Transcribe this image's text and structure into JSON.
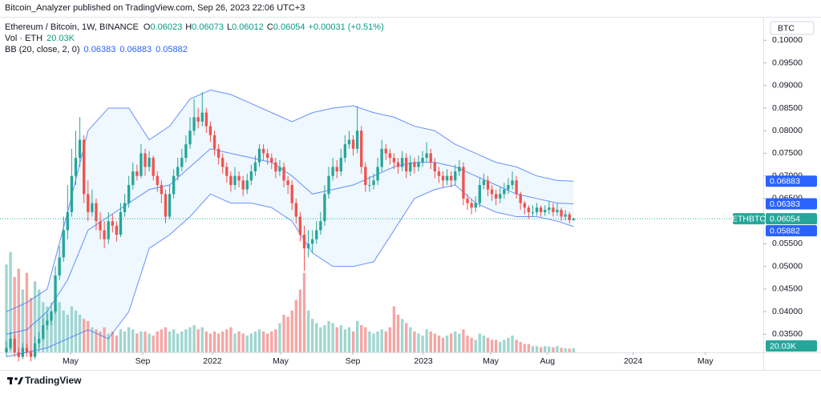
{
  "chart_data": {
    "type": "candlestick",
    "header": {
      "published": "Bitcoin_Analyzer published on TradingView.com, Sep 26, 2023 22:06 UTC+3",
      "symbol": "Ethereum / Bitcoin, 1W, BINANCE",
      "ohlc_keys": [
        "O",
        "H",
        "L",
        "C"
      ],
      "change": "+0.00031 (+0.51%)",
      "volume_name": "Vol · ETH",
      "volume_label": "20.03K",
      "currency": "BTC",
      "ticker": "ETHBTC",
      "brand": "TradingView"
    },
    "up_color": "#26a69a",
    "down_color": "#ef5350",
    "volume_up_color": "#9fd6d0",
    "volume_down_color": "#f5a6a4",
    "xlim": [
      -1.57,
      185.5
    ],
    "ylim": [
      0.031,
      0.105
    ],
    "vlim": [
      0,
      1600
    ],
    "yticks": [
      {
        "value": 0.035,
        "label": "0.03500"
      },
      {
        "value": 0.04,
        "label": "0.04000"
      },
      {
        "value": 0.045,
        "label": "0.04500"
      },
      {
        "value": 0.05,
        "label": "0.05000"
      },
      {
        "value": 0.055,
        "label": "0.05500"
      },
      {
        "value": 0.06,
        "label": "0.06000"
      },
      {
        "value": 0.065,
        "label": "0.06500"
      },
      {
        "value": 0.07,
        "label": "0.07000"
      },
      {
        "value": 0.075,
        "label": "0.07500"
      },
      {
        "value": 0.08,
        "label": "0.08000"
      },
      {
        "value": 0.085,
        "label": "0.08500"
      },
      {
        "value": 0.09,
        "label": "0.09000"
      },
      {
        "value": 0.095,
        "label": "0.09500"
      },
      {
        "value": 0.1,
        "label": "0.10000"
      }
    ],
    "xticks": [
      {
        "value": 15.7,
        "label": "May"
      },
      {
        "value": 33.4,
        "label": "Sep"
      },
      {
        "value": 50.5,
        "label": "2022"
      },
      {
        "value": 67.2,
        "label": "May"
      },
      {
        "value": 84.9,
        "label": "Sep"
      },
      {
        "value": 102.2,
        "label": "2023"
      },
      {
        "value": 118.7,
        "label": "May"
      },
      {
        "value": 132.6,
        "label": "Aug"
      },
      {
        "value": 153.6,
        "label": "2024"
      },
      {
        "value": 171.3,
        "label": "May"
      }
    ],
    "grid": false,
    "ohlc": [
      [
        0.031,
        0.0335,
        0.03,
        0.032
      ],
      [
        0.032,
        0.0355,
        0.0315,
        0.034
      ],
      [
        0.034,
        0.035,
        0.03,
        0.031
      ],
      [
        0.031,
        0.032,
        0.029,
        0.03
      ],
      [
        0.03,
        0.033,
        0.0295,
        0.032
      ],
      [
        0.032,
        0.033,
        0.03,
        0.031
      ],
      [
        0.031,
        0.0315,
        0.029,
        0.03
      ],
      [
        0.03,
        0.0345,
        0.0295,
        0.033
      ],
      [
        0.033,
        0.0355,
        0.032,
        0.034
      ],
      [
        0.034,
        0.0385,
        0.0335,
        0.037
      ],
      [
        0.037,
        0.0395,
        0.036,
        0.038
      ],
      [
        0.038,
        0.042,
        0.037,
        0.04
      ],
      [
        0.04,
        0.05,
        0.0395,
        0.048
      ],
      [
        0.048,
        0.0545,
        0.047,
        0.052
      ],
      [
        0.052,
        0.061,
        0.051,
        0.058
      ],
      [
        0.058,
        0.068,
        0.056,
        0.062
      ],
      [
        0.062,
        0.076,
        0.061,
        0.07
      ],
      [
        0.07,
        0.08,
        0.068,
        0.074
      ],
      [
        0.074,
        0.083,
        0.072,
        0.078
      ],
      [
        0.078,
        0.079,
        0.064,
        0.066
      ],
      [
        0.066,
        0.069,
        0.06,
        0.062
      ],
      [
        0.062,
        0.067,
        0.061,
        0.064
      ],
      [
        0.064,
        0.065,
        0.058,
        0.06
      ],
      [
        0.06,
        0.062,
        0.056,
        0.058
      ],
      [
        0.058,
        0.06,
        0.054,
        0.056
      ],
      [
        0.056,
        0.062,
        0.055,
        0.06
      ],
      [
        0.06,
        0.0615,
        0.0575,
        0.059
      ],
      [
        0.059,
        0.06,
        0.0555,
        0.057
      ],
      [
        0.057,
        0.064,
        0.0565,
        0.062
      ],
      [
        0.062,
        0.066,
        0.061,
        0.064
      ],
      [
        0.064,
        0.07,
        0.063,
        0.068
      ],
      [
        0.068,
        0.073,
        0.067,
        0.071
      ],
      [
        0.071,
        0.0725,
        0.069,
        0.07
      ],
      [
        0.07,
        0.077,
        0.0695,
        0.075
      ],
      [
        0.075,
        0.076,
        0.07,
        0.072
      ],
      [
        0.072,
        0.0755,
        0.071,
        0.074
      ],
      [
        0.074,
        0.0745,
        0.069,
        0.07
      ],
      [
        0.07,
        0.071,
        0.0665,
        0.068
      ],
      [
        0.068,
        0.069,
        0.064,
        0.066
      ],
      [
        0.066,
        0.067,
        0.0595,
        0.061
      ],
      [
        0.061,
        0.068,
        0.0605,
        0.066
      ],
      [
        0.066,
        0.0715,
        0.065,
        0.07
      ],
      [
        0.07,
        0.074,
        0.069,
        0.072
      ],
      [
        0.072,
        0.076,
        0.071,
        0.074
      ],
      [
        0.074,
        0.079,
        0.073,
        0.077
      ],
      [
        0.077,
        0.083,
        0.076,
        0.08
      ],
      [
        0.08,
        0.087,
        0.079,
        0.083
      ],
      [
        0.083,
        0.085,
        0.0805,
        0.082
      ],
      [
        0.082,
        0.0885,
        0.081,
        0.084
      ],
      [
        0.084,
        0.085,
        0.0795,
        0.081
      ],
      [
        0.081,
        0.082,
        0.0775,
        0.079
      ],
      [
        0.079,
        0.08,
        0.0745,
        0.076
      ],
      [
        0.076,
        0.077,
        0.0725,
        0.074
      ],
      [
        0.074,
        0.075,
        0.0705,
        0.072
      ],
      [
        0.072,
        0.073,
        0.0685,
        0.07
      ],
      [
        0.07,
        0.071,
        0.0665,
        0.068
      ],
      [
        0.068,
        0.072,
        0.067,
        0.07
      ],
      [
        0.07,
        0.071,
        0.0675,
        0.069
      ],
      [
        0.069,
        0.07,
        0.0655,
        0.067
      ],
      [
        0.067,
        0.0705,
        0.066,
        0.069
      ],
      [
        0.069,
        0.0725,
        0.068,
        0.071
      ],
      [
        0.071,
        0.0745,
        0.07,
        0.073
      ],
      [
        0.073,
        0.077,
        0.072,
        0.076
      ],
      [
        0.076,
        0.077,
        0.0735,
        0.075
      ],
      [
        0.075,
        0.076,
        0.0725,
        0.074
      ],
      [
        0.074,
        0.075,
        0.0715,
        0.073
      ],
      [
        0.073,
        0.074,
        0.0695,
        0.071
      ],
      [
        0.071,
        0.0735,
        0.07,
        0.072
      ],
      [
        0.072,
        0.073,
        0.0675,
        0.069
      ],
      [
        0.069,
        0.07,
        0.066,
        0.068
      ],
      [
        0.068,
        0.069,
        0.0625,
        0.064
      ],
      [
        0.064,
        0.065,
        0.0595,
        0.061
      ],
      [
        0.061,
        0.062,
        0.0555,
        0.057
      ],
      [
        0.057,
        0.059,
        0.049,
        0.054
      ],
      [
        0.054,
        0.058,
        0.052,
        0.055
      ],
      [
        0.055,
        0.058,
        0.053,
        0.056
      ],
      [
        0.056,
        0.06,
        0.055,
        0.058
      ],
      [
        0.058,
        0.062,
        0.057,
        0.06
      ],
      [
        0.06,
        0.068,
        0.059,
        0.066
      ],
      [
        0.066,
        0.072,
        0.065,
        0.07
      ],
      [
        0.07,
        0.074,
        0.069,
        0.072
      ],
      [
        0.072,
        0.0735,
        0.0695,
        0.071
      ],
      [
        0.071,
        0.076,
        0.07,
        0.074
      ],
      [
        0.074,
        0.079,
        0.073,
        0.077
      ],
      [
        0.077,
        0.08,
        0.076,
        0.078
      ],
      [
        0.078,
        0.079,
        0.0745,
        0.076
      ],
      [
        0.076,
        0.0855,
        0.075,
        0.08
      ],
      [
        0.08,
        0.081,
        0.0705,
        0.072
      ],
      [
        0.072,
        0.073,
        0.0665,
        0.068
      ],
      [
        0.068,
        0.07,
        0.0665,
        0.068
      ],
      [
        0.068,
        0.0705,
        0.067,
        0.069
      ],
      [
        0.069,
        0.074,
        0.068,
        0.072
      ],
      [
        0.072,
        0.078,
        0.071,
        0.076
      ],
      [
        0.076,
        0.077,
        0.0735,
        0.075
      ],
      [
        0.075,
        0.076,
        0.0725,
        0.074
      ],
      [
        0.074,
        0.075,
        0.0715,
        0.073
      ],
      [
        0.073,
        0.074,
        0.0705,
        0.072
      ],
      [
        0.072,
        0.0755,
        0.071,
        0.074
      ],
      [
        0.074,
        0.075,
        0.0695,
        0.071
      ],
      [
        0.071,
        0.0745,
        0.07,
        0.073
      ],
      [
        0.073,
        0.074,
        0.0705,
        0.072
      ],
      [
        0.072,
        0.0745,
        0.071,
        0.073
      ],
      [
        0.073,
        0.0755,
        0.072,
        0.074
      ],
      [
        0.074,
        0.0775,
        0.073,
        0.075
      ],
      [
        0.075,
        0.076,
        0.0715,
        0.073
      ],
      [
        0.073,
        0.074,
        0.0695,
        0.071
      ],
      [
        0.071,
        0.072,
        0.0685,
        0.07
      ],
      [
        0.07,
        0.071,
        0.0675,
        0.069
      ],
      [
        0.069,
        0.0715,
        0.068,
        0.07
      ],
      [
        0.07,
        0.071,
        0.0675,
        0.069
      ],
      [
        0.069,
        0.0725,
        0.068,
        0.071
      ],
      [
        0.071,
        0.0735,
        0.07,
        0.072
      ],
      [
        0.072,
        0.073,
        0.0635,
        0.065
      ],
      [
        0.065,
        0.066,
        0.0625,
        0.064
      ],
      [
        0.064,
        0.065,
        0.0615,
        0.063
      ],
      [
        0.063,
        0.0655,
        0.062,
        0.064
      ],
      [
        0.064,
        0.0695,
        0.063,
        0.068
      ],
      [
        0.068,
        0.0705,
        0.067,
        0.069
      ],
      [
        0.069,
        0.07,
        0.0655,
        0.067
      ],
      [
        0.067,
        0.068,
        0.0645,
        0.066
      ],
      [
        0.066,
        0.067,
        0.0635,
        0.065
      ],
      [
        0.065,
        0.0675,
        0.064,
        0.066
      ],
      [
        0.066,
        0.0685,
        0.065,
        0.067
      ],
      [
        0.067,
        0.0695,
        0.066,
        0.068
      ],
      [
        0.068,
        0.071,
        0.067,
        0.069
      ],
      [
        0.069,
        0.07,
        0.065,
        0.066
      ],
      [
        0.066,
        0.0665,
        0.0625,
        0.064
      ],
      [
        0.064,
        0.0645,
        0.0615,
        0.063
      ],
      [
        0.063,
        0.0635,
        0.0605,
        0.062
      ],
      [
        0.062,
        0.0635,
        0.061,
        0.062
      ],
      [
        0.062,
        0.064,
        0.0612,
        0.063
      ],
      [
        0.063,
        0.0635,
        0.061,
        0.062
      ],
      [
        0.062,
        0.0635,
        0.0612,
        0.0625
      ],
      [
        0.0625,
        0.0645,
        0.0615,
        0.063
      ],
      [
        0.063,
        0.064,
        0.061,
        0.062
      ],
      [
        0.062,
        0.064,
        0.0612,
        0.0625
      ],
      [
        0.0625,
        0.063,
        0.06,
        0.061
      ],
      [
        0.061,
        0.0625,
        0.0602,
        0.0615
      ],
      [
        0.0615,
        0.062,
        0.0595,
        0.06023
      ],
      [
        0.06023,
        0.06073,
        0.06012,
        0.06054
      ]
    ],
    "volume": [
      420,
      480,
      360,
      400,
      300,
      380,
      260,
      340,
      300,
      240,
      220,
      200,
      260,
      240,
      200,
      180,
      220,
      200,
      180,
      160,
      150,
      120,
      110,
      100,
      120,
      90,
      100,
      80,
      110,
      100,
      120,
      110,
      90,
      100,
      100,
      90,
      80,
      100,
      110,
      120,
      100,
      110,
      90,
      100,
      110,
      120,
      130,
      110,
      120,
      100,
      90,
      100,
      90,
      100,
      110,
      120,
      90,
      100,
      90,
      80,
      90,
      100,
      110,
      100,
      90,
      100,
      110,
      140,
      180,
      170,
      200,
      250,
      300,
      380,
      200,
      160,
      140,
      120,
      130,
      150,
      140,
      120,
      130,
      110,
      120,
      100,
      150,
      130,
      120,
      100,
      90,
      100,
      110,
      100,
      120,
      220,
      180,
      160,
      140,
      120,
      100,
      90,
      80,
      110,
      100,
      90,
      80,
      70,
      80,
      90,
      100,
      90,
      110,
      80,
      70,
      60,
      90,
      80,
      70,
      60,
      60,
      50,
      60,
      70,
      80,
      60,
      50,
      40,
      40,
      30,
      30,
      25,
      30,
      28,
      25,
      30,
      22,
      20,
      18,
      20.03
    ],
    "bb": {
      "name": "BB (20, close, 2, 0)",
      "color": "#2962ff",
      "fill": "#2196f3",
      "x": [
        0,
        5,
        10,
        15,
        20,
        25,
        30,
        35,
        40,
        45,
        50,
        55,
        60,
        65,
        70,
        75,
        80,
        85,
        90,
        95,
        100,
        105,
        110,
        115,
        120,
        125,
        130,
        135,
        139
      ],
      "upper": [
        0.04,
        0.042,
        0.045,
        0.062,
        0.08,
        0.085,
        0.085,
        0.078,
        0.081,
        0.087,
        0.089,
        0.088,
        0.086,
        0.084,
        0.082,
        0.084,
        0.085,
        0.0855,
        0.084,
        0.083,
        0.081,
        0.08,
        0.077,
        0.075,
        0.073,
        0.072,
        0.07,
        0.069,
        0.06883
      ],
      "middle": [
        0.035,
        0.036,
        0.04,
        0.047,
        0.058,
        0.061,
        0.064,
        0.067,
        0.068,
        0.072,
        0.076,
        0.075,
        0.074,
        0.073,
        0.07,
        0.066,
        0.067,
        0.068,
        0.07,
        0.072,
        0.073,
        0.073,
        0.072,
        0.07,
        0.068,
        0.066,
        0.065,
        0.064,
        0.06383
      ],
      "lower": [
        0.03,
        0.031,
        0.032,
        0.034,
        0.036,
        0.034,
        0.04,
        0.054,
        0.057,
        0.061,
        0.066,
        0.064,
        0.064,
        0.063,
        0.06,
        0.053,
        0.05,
        0.05,
        0.051,
        0.058,
        0.065,
        0.067,
        0.068,
        0.064,
        0.062,
        0.061,
        0.061,
        0.06,
        0.05882
      ]
    }
  }
}
